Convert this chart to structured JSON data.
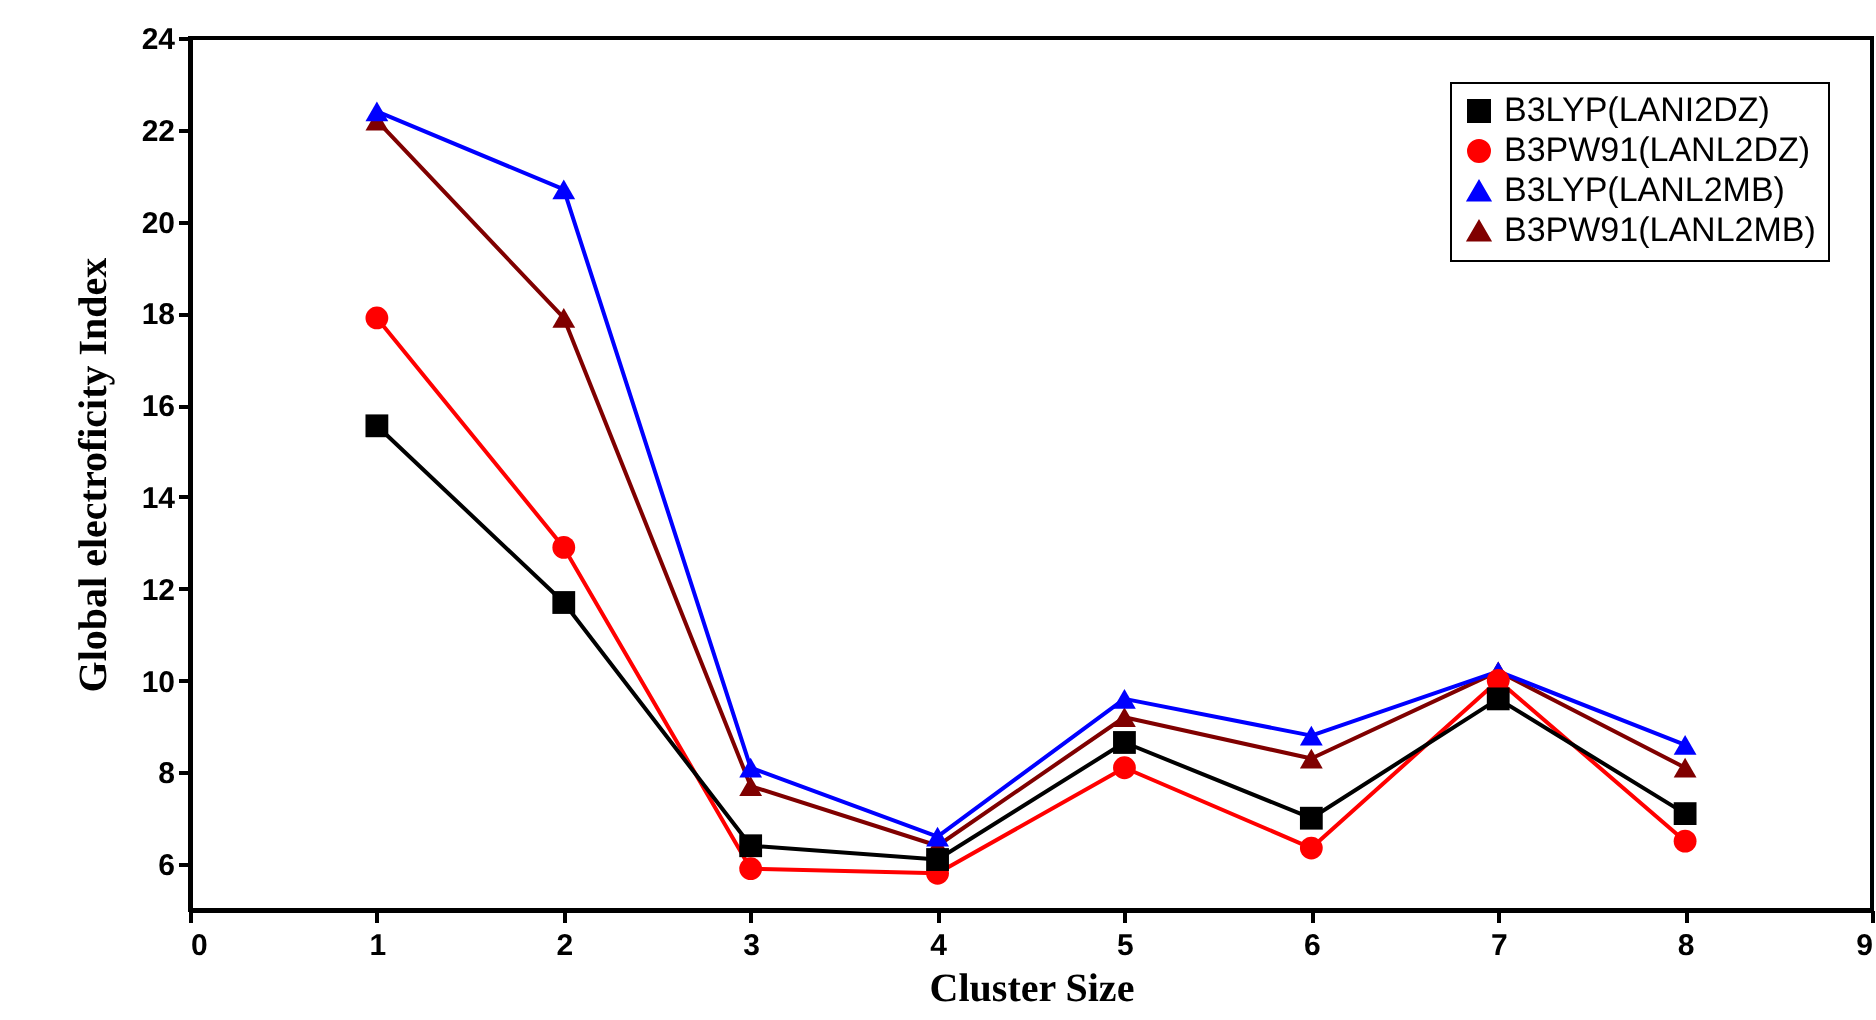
{
  "chart_data": {
    "type": "line",
    "xlabel": "Cluster Size",
    "ylabel": "Global electroficity Index",
    "x": [
      1,
      2,
      3,
      4,
      5,
      6,
      7,
      8
    ],
    "series": [
      {
        "name": "B3LYP(LANI2DZ)",
        "color": "#000000",
        "marker": "square",
        "values": [
          15.55,
          11.7,
          6.4,
          6.1,
          8.65,
          7.0,
          9.6,
          7.1
        ]
      },
      {
        "name": "B3PW91(LANL2DZ)",
        "color": "#ff0000",
        "marker": "circle",
        "values": [
          17.9,
          12.9,
          5.9,
          5.8,
          8.1,
          6.35,
          10.0,
          6.5
        ]
      },
      {
        "name": "B3LYP(LANL2MB)",
        "color": "#0000ff",
        "marker": "triangle",
        "values": [
          22.4,
          20.7,
          8.1,
          6.6,
          9.6,
          8.8,
          10.2,
          8.6
        ]
      },
      {
        "name": "B3PW91(LANL2MB)",
        "color": "#800000",
        "marker": "triangle",
        "values": [
          22.2,
          17.9,
          7.7,
          6.4,
          9.2,
          8.3,
          10.2,
          8.1
        ]
      }
    ],
    "xlim": [
      0,
      9
    ],
    "xticks": [
      0,
      1,
      2,
      3,
      4,
      5,
      6,
      7,
      8,
      9
    ],
    "ylim": [
      5,
      24
    ],
    "yticks": [
      6,
      8,
      10,
      12,
      14,
      16,
      18,
      20,
      22,
      24
    ],
    "grid": false,
    "legend": "top right",
    "line_style": "solid"
  }
}
